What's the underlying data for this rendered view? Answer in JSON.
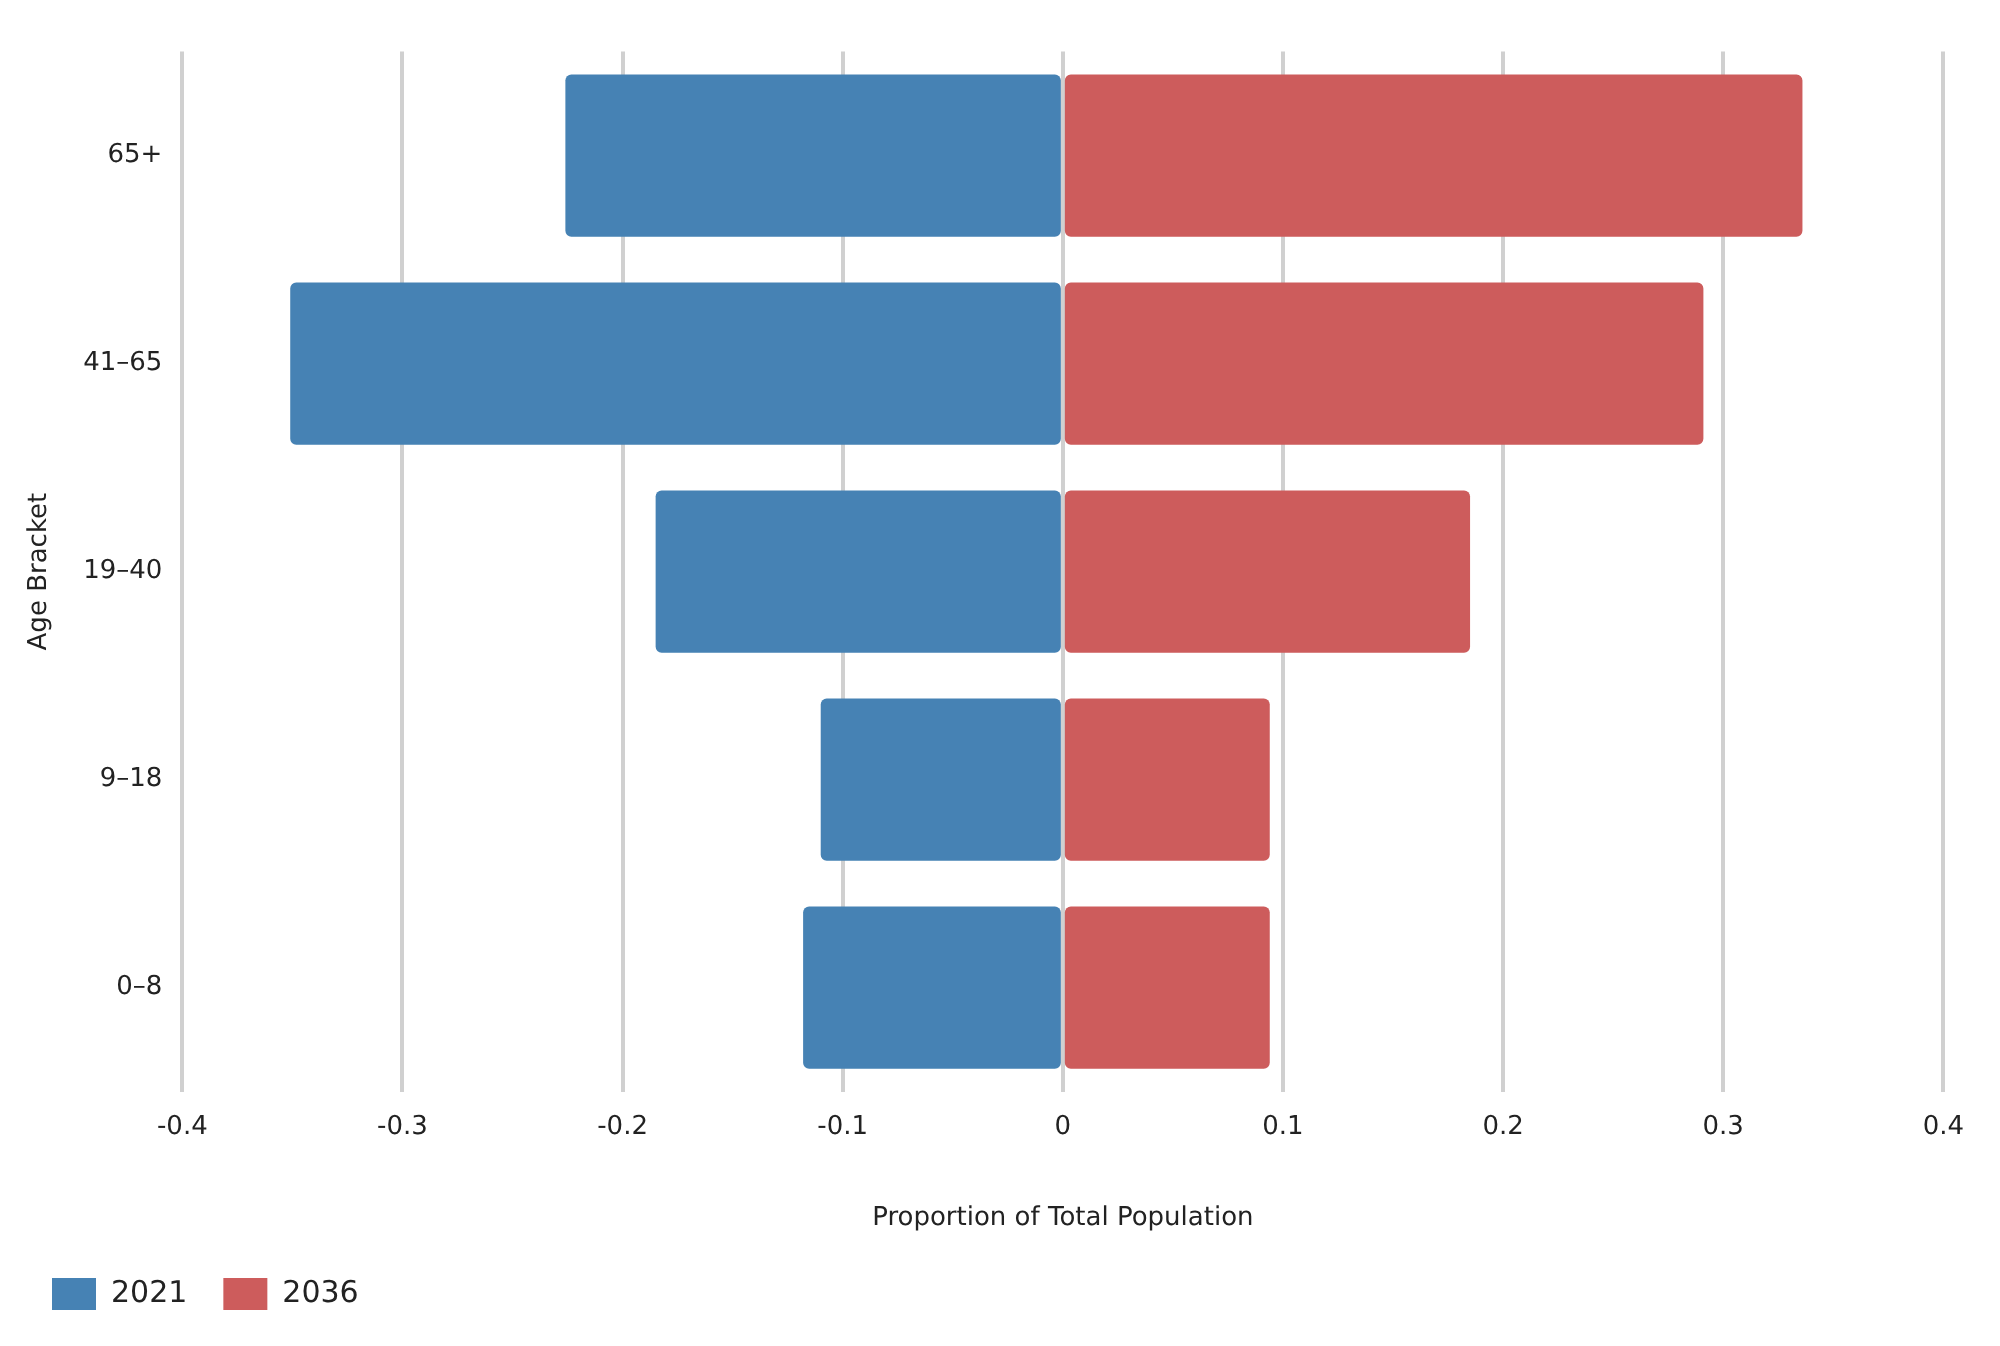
{
  "chart_data": {
    "type": "bar",
    "orientation": "horizontal",
    "stacked": true,
    "xlabel": "Proportion of Total Population",
    "ylabel": "Age Bracket",
    "categories": [
      "65+",
      "41–65",
      "19–40",
      "9–18",
      "0–8"
    ],
    "series": [
      {
        "name": "2021",
        "color": "#4682b4",
        "values": [
          -0.226,
          -0.351,
          -0.185,
          -0.11,
          -0.118
        ]
      },
      {
        "name": "2036",
        "color": "#cd5c5c",
        "values": [
          0.336,
          0.291,
          0.185,
          0.094,
          0.094
        ]
      }
    ],
    "xlim": [
      -0.4,
      0.4
    ],
    "xticks": [
      -0.4,
      -0.3,
      -0.2,
      -0.1,
      0,
      0.1,
      0.2,
      0.3,
      0.4
    ],
    "grid": "x",
    "legend": "bottom left"
  }
}
